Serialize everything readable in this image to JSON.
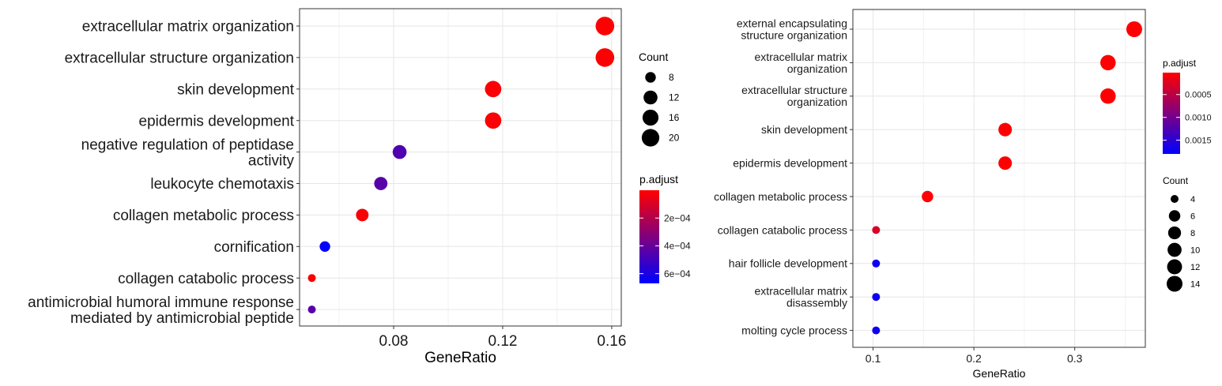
{
  "chart_data": [
    {
      "type": "scatter",
      "xlabel": "GeneRatio",
      "ylabel": "",
      "xlim": [
        0.0455,
        0.1635
      ],
      "xticks": [
        0.08,
        0.12,
        0.16
      ],
      "xtick_labels": [
        "0.08",
        "0.12",
        "0.16"
      ],
      "grid": true,
      "colorbar": {
        "title": "p.adjust",
        "range": [
          0.0,
          0.00067
        ],
        "ticks": [
          0.0002,
          0.0004,
          0.0006
        ],
        "tick_labels": [
          "2e−04",
          "4e−04",
          "6e−04"
        ],
        "low_color": "#ff0000",
        "high_color": "#0000ff"
      },
      "size_legend": {
        "title": "Count",
        "values": [
          8,
          12,
          16,
          20
        ],
        "labels": [
          "8",
          "12",
          "16",
          "20"
        ],
        "range": [
          7,
          24
        ]
      },
      "legend_order": [
        "size",
        "color"
      ],
      "categories": [
        [
          "extracellular matrix organization"
        ],
        [
          "extracellular structure organization"
        ],
        [
          "skin development"
        ],
        [
          "epidermis development"
        ],
        [
          "negative regulation of peptidase",
          "activity"
        ],
        [
          "leukocyte chemotaxis"
        ],
        [
          "collagen metabolic process"
        ],
        [
          "cornification"
        ],
        [
          "collagen catabolic process"
        ],
        [
          "antimicrobial humoral immune response",
          "mediated by antimicrobial peptide"
        ]
      ],
      "x": [
        0.1575,
        0.1575,
        0.1165,
        0.1165,
        0.0822,
        0.0753,
        0.0685,
        0.0548,
        0.05,
        0.05
      ],
      "count": [
        23,
        23,
        17,
        17,
        12,
        11,
        10,
        8,
        7,
        7
      ],
      "p_adjust": [
        5e-06,
        5e-06,
        1e-05,
        1e-05,
        0.00046,
        0.00044,
        2e-05,
        0.00066,
        1e-05,
        0.00044
      ]
    },
    {
      "type": "scatter",
      "xlabel": "GeneRatio",
      "ylabel": "",
      "xlim": [
        0.08,
        0.37
      ],
      "xticks": [
        0.1,
        0.2,
        0.3
      ],
      "xtick_labels": [
        "0.1",
        "0.2",
        "0.3"
      ],
      "grid": true,
      "colorbar": {
        "title": "p.adjust",
        "range": [
          2e-05,
          0.0018
        ],
        "ticks": [
          0.0005,
          0.001,
          0.0015
        ],
        "tick_labels": [
          "0.0005",
          "0.0010",
          "0.0015"
        ],
        "low_color": "#ff0000",
        "high_color": "#0000ff"
      },
      "size_legend": {
        "title": "Count",
        "values": [
          4,
          6,
          8,
          10,
          12,
          14
        ],
        "labels": [
          "4",
          "6",
          "8",
          "10",
          "12",
          "14"
        ],
        "range": [
          4,
          14
        ]
      },
      "legend_order": [
        "color",
        "size"
      ],
      "categories": [
        [
          "external encapsulating",
          "structure organization"
        ],
        [
          "extracellular matrix",
          "organization"
        ],
        [
          "extracellular structure",
          "organization"
        ],
        [
          "skin development"
        ],
        [
          "epidermis development"
        ],
        [
          "collagen metabolic process"
        ],
        [
          "collagen catabolic process"
        ],
        [
          "hair follicle development"
        ],
        [
          "extracellular matrix",
          "disassembly"
        ],
        [
          "molting cycle process"
        ]
      ],
      "x": [
        0.359,
        0.333,
        0.333,
        0.231,
        0.231,
        0.154,
        0.103,
        0.103,
        0.103,
        0.103
      ],
      "count": [
        14,
        13,
        13,
        9,
        9,
        6,
        4,
        4,
        4,
        4
      ],
      "p_adjust": [
        3e-05,
        3e-05,
        3e-05,
        3e-05,
        3e-05,
        3e-05,
        0.0003,
        0.0017,
        0.0017,
        0.0017
      ]
    }
  ]
}
